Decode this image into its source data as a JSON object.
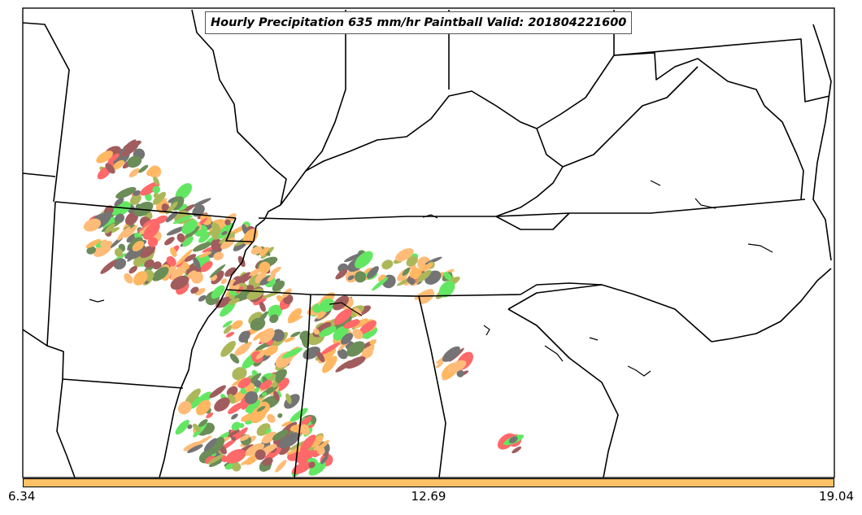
{
  "title": "Hourly Precipitation 635 mm/hr Paintball Valid: 201804221600",
  "colorbar": {
    "min_label": "6.34",
    "mid_label": "12.69",
    "max_label": "19.04",
    "color": "#ffc266"
  },
  "colors": {
    "background": "#ffffff",
    "boundaries": "#000000",
    "paintball_members": [
      "#ff9a1f",
      "#ff2a2a",
      "#22dd22",
      "#8a9a14",
      "#7a1a1a",
      "#2d5e12",
      "#3a3a3a",
      "#ffa040"
    ]
  }
}
